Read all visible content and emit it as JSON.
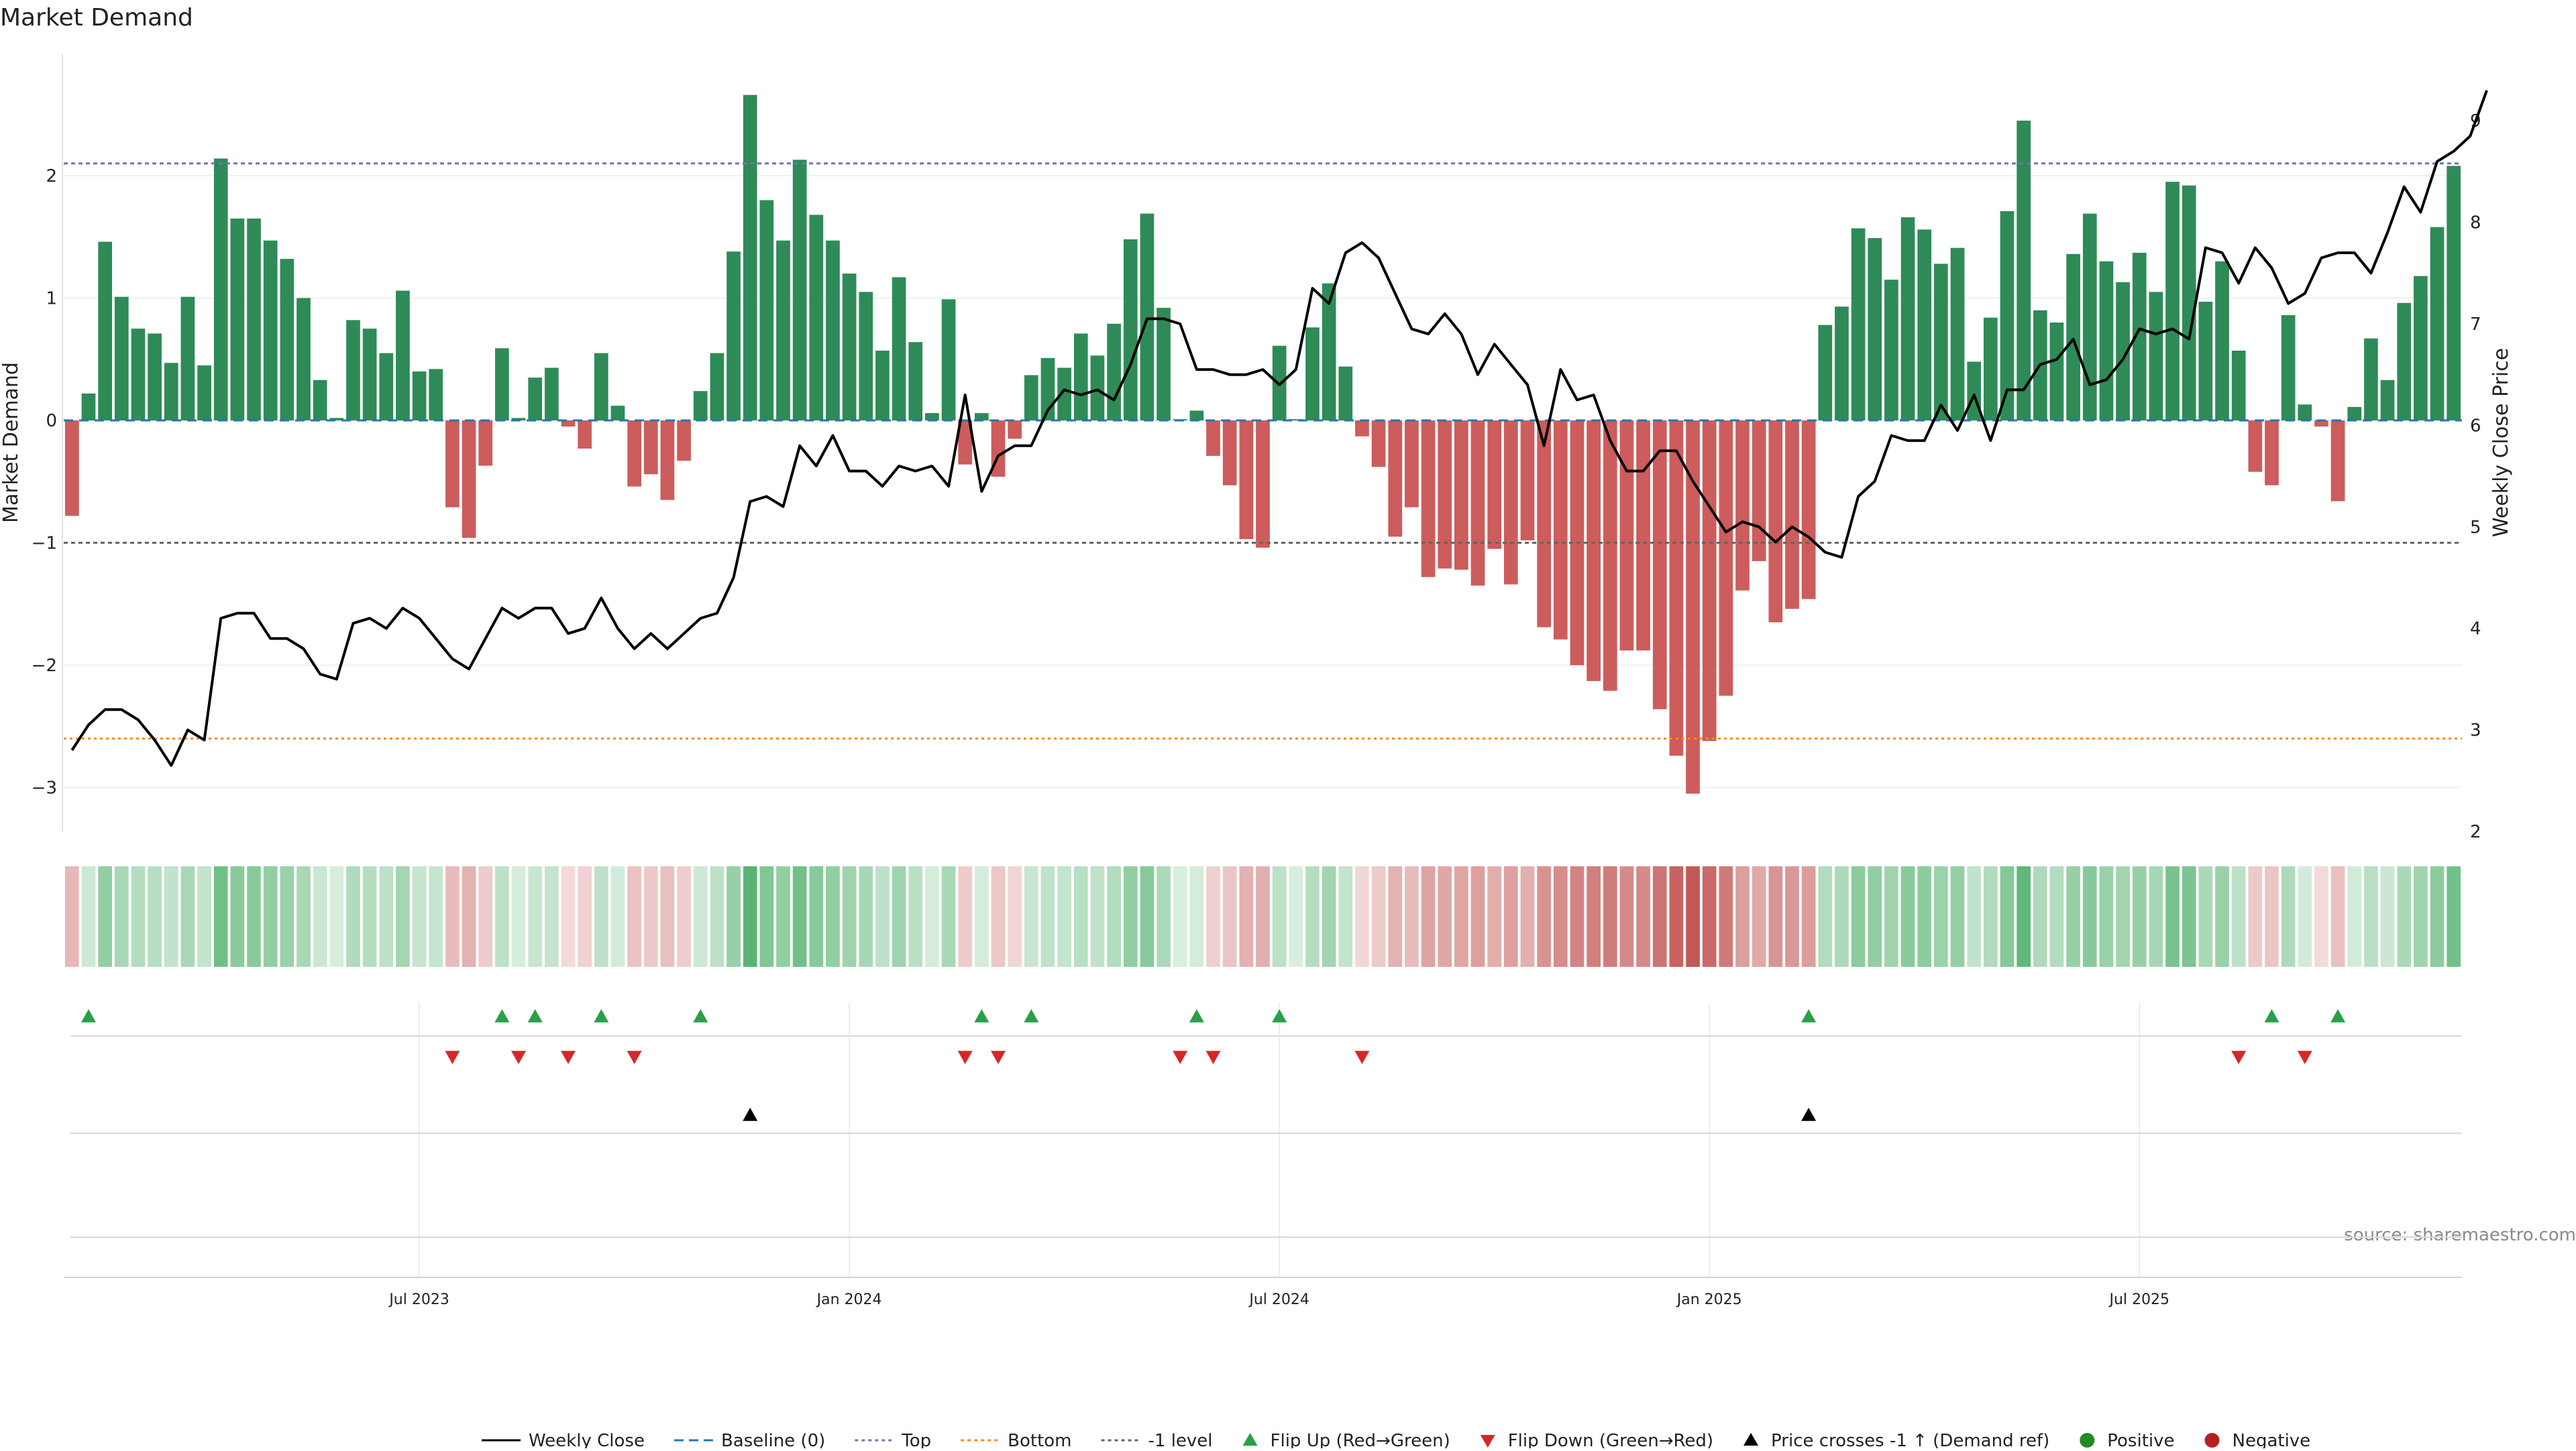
{
  "chart_data": {
    "type": "bar",
    "title": "Market Demand",
    "ylabel": "Market Demand",
    "y2label": "Weekly Close Price",
    "ylim": [
      -3.4,
      3.0
    ],
    "y2lim": [
      2,
      9.4
    ],
    "yticks": [
      "−3",
      "−2",
      "−1",
      "0",
      "1",
      "2"
    ],
    "y2ticks": [
      "2",
      "3",
      "4",
      "5",
      "6",
      "7",
      "8",
      "9"
    ],
    "xticks": [
      "Jul 2023",
      "Jan 2024",
      "Jul 2024",
      "Jan 2025",
      "Jul 2025"
    ],
    "xtick_index": [
      21.5,
      47.5,
      73.5,
      99.5,
      125.5
    ],
    "reference_lines": {
      "top": 2.1,
      "bottom": -2.6,
      "minus_one": -1.0,
      "baseline": 0
    },
    "series": [
      {
        "name": "Market Demand",
        "values": [
          -0.78,
          0.22,
          1.46,
          1.01,
          0.75,
          0.71,
          0.47,
          1.01,
          0.45,
          2.14,
          1.65,
          1.65,
          1.47,
          1.32,
          1.0,
          0.33,
          0.02,
          0.82,
          0.75,
          0.55,
          1.06,
          0.4,
          0.42,
          -0.71,
          -0.96,
          -0.37,
          0.59,
          0.02,
          0.35,
          0.43,
          -0.05,
          -0.23,
          0.55,
          0.12,
          -0.54,
          -0.44,
          -0.65,
          -0.33,
          0.24,
          0.55,
          1.38,
          2.66,
          1.8,
          1.47,
          2.13,
          1.68,
          1.47,
          1.2,
          1.05,
          0.57,
          1.17,
          0.64,
          0.06,
          0.99,
          -0.36,
          0.06,
          -0.46,
          -0.15,
          0.37,
          0.51,
          0.43,
          0.71,
          0.53,
          0.79,
          1.48,
          1.69,
          0.92,
          0.01,
          0.08,
          -0.29,
          -0.53,
          -0.97,
          -1.04,
          0.61,
          0.01,
          0.76,
          1.12,
          0.44,
          -0.13,
          -0.38,
          -0.95,
          -0.71,
          -1.28,
          -1.21,
          -1.22,
          -1.35,
          -1.05,
          -1.34,
          -0.98,
          -1.69,
          -1.79,
          -2.0,
          -2.13,
          -2.21,
          -1.88,
          -1.88,
          -2.36,
          -2.74,
          -3.05,
          -2.62,
          -2.25,
          -1.39,
          -1.15,
          -1.65,
          -1.54,
          -1.46,
          0.78,
          0.93,
          1.57,
          1.49,
          1.15,
          1.66,
          1.56,
          1.28,
          1.41,
          0.48,
          0.84,
          1.71,
          2.45,
          0.9,
          0.8,
          1.36,
          1.69,
          1.3,
          1.13,
          1.37,
          1.05,
          1.95,
          1.92,
          0.97,
          1.3,
          0.57,
          -0.42,
          -0.53,
          0.86,
          0.13,
          -0.05,
          -0.66,
          0.11,
          0.67,
          0.33,
          0.96,
          1.18,
          1.58,
          2.08
        ]
      },
      {
        "name": "Weekly Close",
        "values": [
          2.8,
          3.05,
          3.2,
          3.2,
          3.1,
          2.9,
          2.65,
          3.0,
          2.9,
          4.1,
          4.15,
          4.15,
          3.9,
          3.9,
          3.8,
          3.55,
          3.5,
          4.05,
          4.1,
          4.0,
          4.2,
          4.1,
          3.9,
          3.7,
          3.6,
          3.9,
          4.2,
          4.1,
          4.2,
          4.2,
          3.95,
          4.0,
          4.3,
          4.0,
          3.8,
          3.95,
          3.8,
          3.95,
          4.1,
          4.15,
          4.5,
          5.25,
          5.3,
          5.2,
          5.8,
          5.6,
          5.9,
          5.55,
          5.55,
          5.4,
          5.6,
          5.55,
          5.6,
          5.4,
          6.3,
          5.35,
          5.7,
          5.8,
          5.8,
          6.15,
          6.35,
          6.3,
          6.35,
          6.25,
          6.6,
          7.05,
          7.05,
          7.0,
          6.55,
          6.55,
          6.5,
          6.5,
          6.55,
          6.4,
          6.55,
          7.35,
          7.2,
          7.7,
          7.8,
          7.65,
          7.3,
          6.95,
          6.9,
          7.1,
          6.9,
          6.5,
          6.8,
          6.6,
          6.4,
          5.8,
          6.55,
          6.25,
          6.3,
          5.85,
          5.55,
          5.55,
          5.75,
          5.75,
          5.45,
          5.2,
          4.95,
          5.05,
          5.0,
          4.85,
          5.0,
          4.9,
          4.75,
          4.7,
          5.3,
          5.45,
          5.9,
          5.85,
          5.85,
          6.2,
          5.95,
          6.3,
          5.85,
          6.35,
          6.35,
          6.6,
          6.65,
          6.85,
          6.4,
          6.45,
          6.65,
          6.95,
          6.9,
          6.95,
          6.85,
          7.75,
          7.7,
          7.4,
          7.75,
          7.55,
          7.2,
          7.3,
          7.65,
          7.7,
          7.7,
          7.5,
          7.9,
          8.35,
          8.1,
          8.6,
          8.7,
          8.85,
          9.3
        ]
      }
    ],
    "flip_up_weeks": [
      1,
      26,
      28,
      32,
      38,
      55,
      58,
      68,
      73,
      105,
      133,
      137
    ],
    "flip_down_weeks": [
      23,
      27,
      30,
      34,
      54,
      56,
      67,
      69,
      78,
      131,
      135
    ],
    "price_cross_weeks": [
      41,
      105
    ],
    "legend": [
      {
        "label": "Weekly Close",
        "symbol": "line-solid",
        "color": "#000000"
      },
      {
        "label": "Baseline (0)",
        "symbol": "line-dashed",
        "color": "#1f77b4"
      },
      {
        "label": "Top",
        "symbol": "line-dotted",
        "color": "#7a6fb3"
      },
      {
        "label": "Bottom",
        "symbol": "line-dotted",
        "color": "#ff8c00"
      },
      {
        "label": "-1 level",
        "symbol": "line-dotted",
        "color": "#666666"
      },
      {
        "label": "Flip Up (Red→Green)",
        "symbol": "triangle-up",
        "color": "#27a04a"
      },
      {
        "label": "Flip Down (Green→Red)",
        "symbol": "triangle-down",
        "color": "#d62728"
      },
      {
        "label": "Price crosses -1 ↑ (Demand ref)",
        "symbol": "triangle-up",
        "color": "#000000"
      },
      {
        "label": "Positive",
        "symbol": "circle",
        "color": "#228b22"
      },
      {
        "label": "Negative",
        "symbol": "circle",
        "color": "#b22222"
      }
    ],
    "annotation": "source: sharemaestro.com"
  },
  "colors": {
    "positive": "#2e8b57",
    "negative": "#cd5c5c",
    "price": "#000000",
    "top": "#7a6fb3",
    "bottom": "#ff8c00",
    "minus_one": "#666666",
    "baseline": "#1f77b4"
  }
}
